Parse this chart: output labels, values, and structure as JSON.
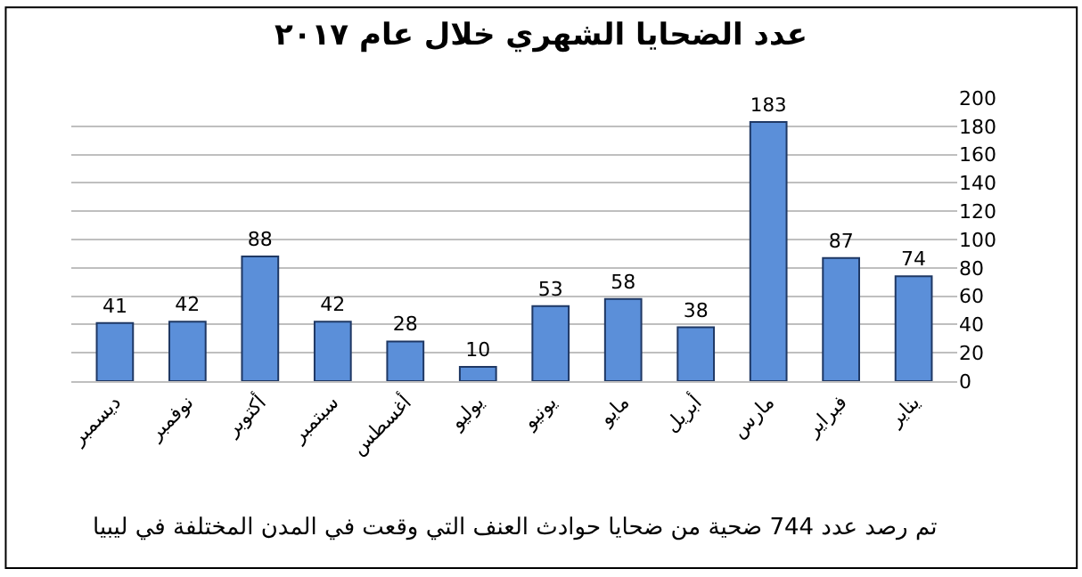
{
  "chart_data": {
    "type": "bar",
    "title": "عدد الضحايا الشهري خلال عام ٢٠١٧",
    "categories": [
      "ديسمبر",
      "نوفمبر",
      "أكتوبر",
      "سبتمبر",
      "أغسطس",
      "يوليو",
      "يونيو",
      "مايو",
      "أبريل",
      "مارس",
      "فبراير",
      "يناير"
    ],
    "values": [
      41,
      42,
      88,
      42,
      28,
      10,
      53,
      58,
      38,
      183,
      87,
      74
    ],
    "color": "#5b8fd9",
    "ylim": [
      0,
      200
    ],
    "yticks": [
      0,
      20,
      40,
      60,
      80,
      100,
      120,
      140,
      160,
      180,
      200
    ],
    "grid": "y",
    "data_labels": true,
    "annotations": [
      "تم رصد عدد 744 ضحية من ضحايا حوادث العنف التي وقعت في المدن المختلفة في ليبيا"
    ]
  }
}
